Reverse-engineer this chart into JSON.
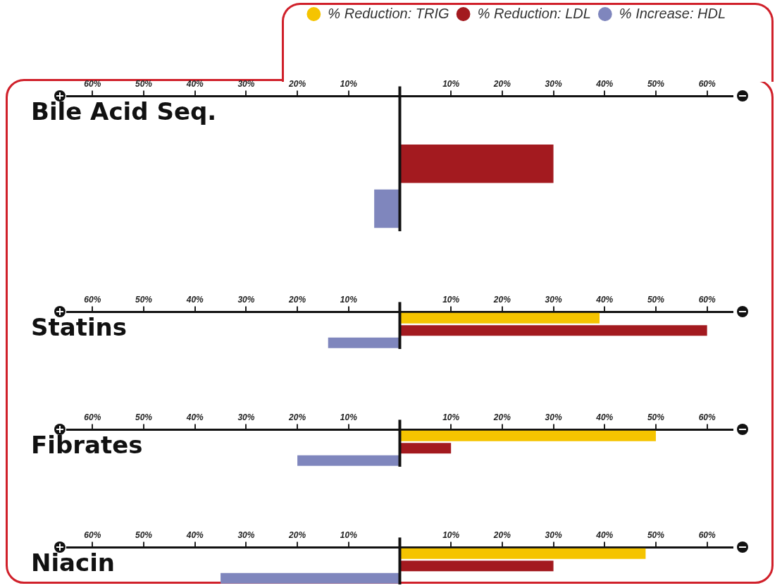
{
  "chart_data": [
    {
      "type": "bar",
      "orientation": "horizontal",
      "title": "Bile Acid Seq.",
      "categories": [
        null,
        null,
        null
      ],
      "legend": "top right",
      "grid": false,
      "series": [
        {
          "name": "% Reduction: TRIG",
          "color": "#f5c400",
          "values": [
            null,
            null,
            null
          ]
        },
        {
          "name": "% Reduction: LDL",
          "color": "#a31a1f",
          "values": [
            null,
            30,
            null
          ]
        },
        {
          "name": "% Increase: HDL",
          "color": "#7f86bd",
          "values": [
            null,
            null,
            -5
          ]
        }
      ],
      "xlim": [
        -65,
        65
      ],
      "xticks": [
        {
          "value": -60,
          "label": "60%"
        },
        {
          "value": -50,
          "label": "50%"
        },
        {
          "value": -40,
          "label": "40%"
        },
        {
          "value": -30,
          "label": "30%"
        },
        {
          "value": -20,
          "label": "20%"
        },
        {
          "value": -10,
          "label": "10%"
        },
        {
          "value": 10,
          "label": "10%"
        },
        {
          "value": 20,
          "label": "20%"
        },
        {
          "value": 30,
          "label": "30%"
        },
        {
          "value": 40,
          "label": "40%"
        },
        {
          "value": 50,
          "label": "50%"
        },
        {
          "value": 60,
          "label": "60%"
        }
      ],
      "ref_lines": [
        {
          "axis": "x",
          "value": 0
        }
      ]
    },
    {
      "type": "bar",
      "orientation": "horizontal",
      "title": "Statins",
      "categories": [
        null,
        null,
        null
      ],
      "grid": false,
      "series": [
        {
          "color": "#f5c400",
          "values": [
            39,
            null,
            null
          ]
        },
        {
          "color": "#a31a1f",
          "values": [
            null,
            60,
            null
          ]
        },
        {
          "color": "#7f86bd",
          "values": [
            null,
            null,
            -14
          ]
        }
      ],
      "xlim": [
        -65,
        65
      ],
      "xticks": [
        {
          "value": -60,
          "label": "60%"
        },
        {
          "value": -50,
          "label": "50%"
        },
        {
          "value": -40,
          "label": "40%"
        },
        {
          "value": -30,
          "label": "30%"
        },
        {
          "value": -20,
          "label": "20%"
        },
        {
          "value": -10,
          "label": "10%"
        },
        {
          "value": 10,
          "label": "10%"
        },
        {
          "value": 20,
          "label": "20%"
        },
        {
          "value": 30,
          "label": "30%"
        },
        {
          "value": 40,
          "label": "40%"
        },
        {
          "value": 50,
          "label": "50%"
        },
        {
          "value": 60,
          "label": "60%"
        }
      ],
      "ref_lines": [
        {
          "axis": "x",
          "value": 0
        }
      ]
    },
    {
      "type": "bar",
      "orientation": "horizontal",
      "title": "Fibrates",
      "categories": [
        null,
        null,
        null
      ],
      "grid": false,
      "series": [
        {
          "color": "#f5c400",
          "values": [
            50,
            null,
            null
          ]
        },
        {
          "color": "#a31a1f",
          "values": [
            null,
            10,
            null
          ]
        },
        {
          "color": "#7f86bd",
          "values": [
            null,
            null,
            -20
          ]
        }
      ],
      "xlim": [
        -65,
        65
      ],
      "xticks": [
        {
          "value": -60,
          "label": "60%"
        },
        {
          "value": -50,
          "label": "50%"
        },
        {
          "value": -40,
          "label": "40%"
        },
        {
          "value": -30,
          "label": "30%"
        },
        {
          "value": -20,
          "label": "20%"
        },
        {
          "value": -10,
          "label": "10%"
        },
        {
          "value": 10,
          "label": "10%"
        },
        {
          "value": 20,
          "label": "20%"
        },
        {
          "value": 30,
          "label": "30%"
        },
        {
          "value": 40,
          "label": "40%"
        },
        {
          "value": 50,
          "label": "50%"
        },
        {
          "value": 60,
          "label": "60%"
        }
      ],
      "ref_lines": [
        {
          "axis": "x",
          "value": 0
        }
      ]
    },
    {
      "type": "bar",
      "orientation": "horizontal",
      "title": "Niacin",
      "categories": [
        null,
        null,
        null
      ],
      "grid": false,
      "series": [
        {
          "color": "#f5c400",
          "values": [
            48,
            null,
            null
          ]
        },
        {
          "color": "#a31a1f",
          "values": [
            null,
            30,
            null
          ]
        },
        {
          "color": "#7f86bd",
          "values": [
            null,
            null,
            -35
          ]
        }
      ],
      "xlim": [
        -65,
        65
      ],
      "xticks": [
        {
          "value": -60,
          "label": "60%"
        },
        {
          "value": -50,
          "label": "50%"
        },
        {
          "value": -40,
          "label": "40%"
        },
        {
          "value": -30,
          "label": "30%"
        },
        {
          "value": -20,
          "label": "20%"
        },
        {
          "value": -10,
          "label": "10%"
        },
        {
          "value": 10,
          "label": "10%"
        },
        {
          "value": 20,
          "label": "20%"
        },
        {
          "value": 30,
          "label": "30%"
        },
        {
          "value": 40,
          "label": "40%"
        },
        {
          "value": 50,
          "label": "50%"
        },
        {
          "value": 60,
          "label": "60%"
        }
      ],
      "ref_lines": [
        {
          "axis": "x",
          "value": 0
        }
      ]
    }
  ]
}
